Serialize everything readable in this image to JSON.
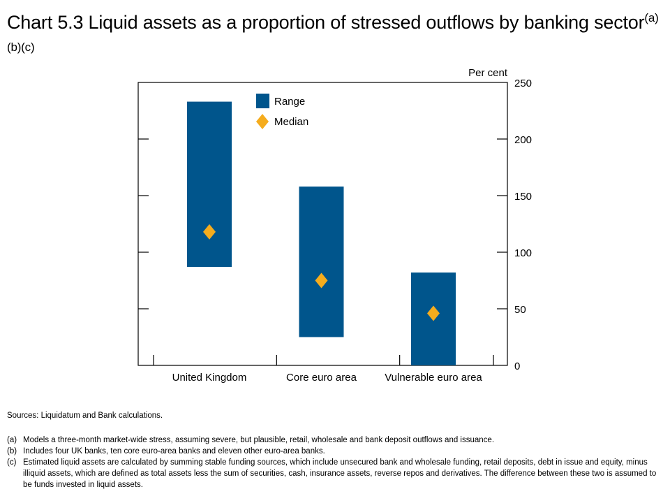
{
  "title": {
    "text": "Chart 5.3  Liquid assets as a proportion of stressed outflows by banking sector",
    "superscript": "(a)(b)(c)"
  },
  "chart_data": {
    "type": "bar",
    "subtype": "floating-range-with-median",
    "categories": [
      "United Kingdom",
      "Core euro area",
      "Vulnerable euro area"
    ],
    "series": [
      {
        "name": "Range",
        "values": [
          [
            87,
            233
          ],
          [
            25,
            158
          ],
          [
            0,
            82
          ]
        ],
        "color": "#00558c"
      },
      {
        "name": "Median",
        "values": [
          118,
          75,
          46
        ],
        "color": "#f5ac1d",
        "marker": "diamond"
      }
    ],
    "ylabel": "Per cent",
    "ylim": [
      0,
      250
    ],
    "yticks": [
      0,
      50,
      100,
      150,
      200,
      250
    ],
    "y_axis_side": "right",
    "grid": false,
    "legend_position": "top-left"
  },
  "sources": "Sources: Liquidatum and Bank calculations.",
  "notes": [
    {
      "label": "(a)",
      "text": "Models a three-month market-wide stress, assuming severe, but plausible, retail, wholesale and bank deposit outflows and issuance."
    },
    {
      "label": "(b)",
      "text": "Includes four UK banks, ten core euro-area banks and eleven other euro-area banks."
    },
    {
      "label": "(c)",
      "text": "Estimated liquid assets are calculated by summing stable funding sources, which include unsecured bank and wholesale funding, retail deposits, debt in issue and equity, minus illiquid assets, which are defined as total assets less the sum of securities, cash, insurance assets, reverse repos and derivatives. The difference between these two is assumed to be funds invested in liquid assets."
    }
  ]
}
